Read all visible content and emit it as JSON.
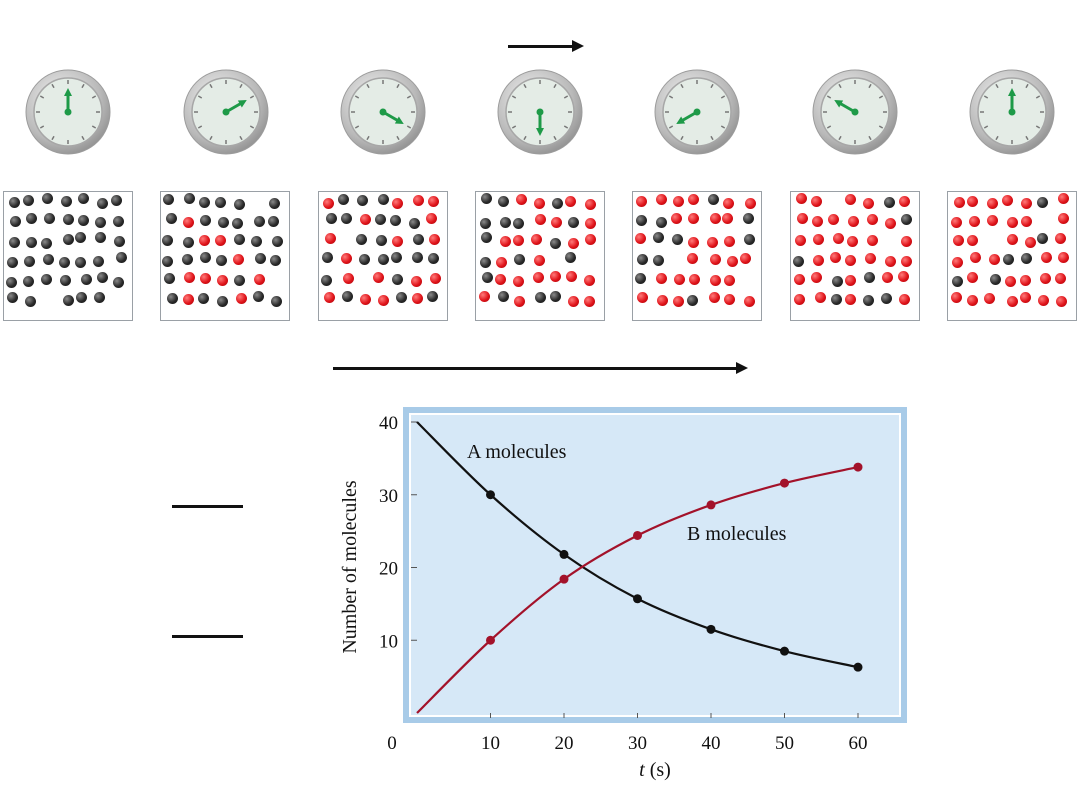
{
  "clocks": [
    {
      "time_s": 0
    },
    {
      "time_s": 10
    },
    {
      "time_s": 20
    },
    {
      "time_s": 30
    },
    {
      "time_s": 40
    },
    {
      "time_s": 50
    },
    {
      "time_s": 60
    }
  ],
  "boxes": [
    {
      "a_count": 40,
      "b_count": 0
    },
    {
      "a_count": 30,
      "b_count": 10
    },
    {
      "a_count": 22,
      "b_count": 18
    },
    {
      "a_count": 16,
      "b_count": 24
    },
    {
      "a_count": 11,
      "b_count": 29
    },
    {
      "a_count": 8,
      "b_count": 32
    },
    {
      "a_count": 6,
      "b_count": 34
    }
  ],
  "colors": {
    "a_series": "#111111",
    "b_series": "#a3122a",
    "plot_bg": "#d6e8f7",
    "frame": "#a8cbe8"
  },
  "chart_data": {
    "type": "line",
    "xlabel_var": "t",
    "xlabel_unit": " (s)",
    "ylabel": "Number of molecules",
    "xlim": [
      0,
      60
    ],
    "ylim": [
      0,
      40
    ],
    "x_ticks": [
      "0",
      "10",
      "20",
      "30",
      "40",
      "50",
      "60"
    ],
    "y_ticks": [
      "10",
      "20",
      "30",
      "40"
    ],
    "grid": false,
    "series": [
      {
        "name": "A molecules",
        "x": [
          0,
          10,
          20,
          30,
          40,
          50,
          60
        ],
        "values": [
          40,
          30,
          21.8,
          15.7,
          11.5,
          8.5,
          6.3
        ],
        "marked_x": [
          10,
          20,
          30,
          40,
          50,
          60
        ]
      },
      {
        "name": "B molecules",
        "x": [
          0,
          10,
          20,
          30,
          40,
          50,
          60
        ],
        "values": [
          0,
          10,
          18.4,
          24.4,
          28.6,
          31.6,
          33.8
        ],
        "marked_x": [
          10,
          20,
          30,
          40,
          50,
          60
        ]
      }
    ]
  }
}
